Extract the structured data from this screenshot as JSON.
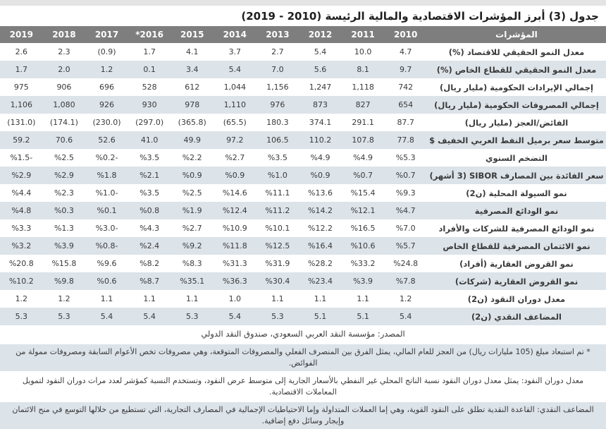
{
  "title": "جدول (3) أبرز المؤشرات الاقتصادية والمالية الرئيسة (2010 - 2019)",
  "colors": {
    "header_bg": "#7e7e7e",
    "header_text": "#ffffff",
    "row_alt_bg": "#dce3e9",
    "body_text": "#3a3a3a",
    "top_strip": "#e4e4e4"
  },
  "table": {
    "indicator_header": "المؤشرات",
    "years": [
      "2010",
      "2011",
      "2012",
      "2013",
      "2014",
      "2015",
      "*2016",
      "2017",
      "2018",
      "2019"
    ],
    "rows": [
      {
        "label": "معدل النمو الحقيقي للاقتصاد (%)",
        "values": [
          "4.7",
          "10.0",
          "5.4",
          "2.7",
          "3.7",
          "4.1",
          "1.7",
          "(0.9)",
          "2.3",
          "2.6"
        ]
      },
      {
        "label": "معدل النمو الحقيقي للقطاع الخاص (%)",
        "values": [
          "9.7",
          "8.1",
          "5.6",
          "7.0",
          "5.4",
          "3.4",
          "0.1",
          "1.2",
          "2.0",
          "1.7"
        ]
      },
      {
        "label": "إجمالي الإيرادات الحكومية (مليار ريال)",
        "values": [
          "742",
          "1,118",
          "1,247",
          "1,156",
          "1,044",
          "612",
          "528",
          "696",
          "906",
          "975"
        ]
      },
      {
        "label": "إجمالي المصروفات الحكومية (مليار ريال)",
        "values": [
          "654",
          "827",
          "873",
          "976",
          "1,110",
          "978",
          "930",
          "926",
          "1,080",
          "1,106"
        ]
      },
      {
        "label": "الفائض/العجز (مليار ريال)",
        "values": [
          "87.7",
          "291.1",
          "374.1",
          "180.3",
          "(65.5)",
          "(365.8)",
          "(297.0)",
          "(230.0)",
          "(174.1)",
          "(131.0)"
        ]
      },
      {
        "label": "متوسط سعر برميل النفط العربي الخفيف $",
        "values": [
          "77.8",
          "107.8",
          "110.2",
          "106.5",
          "97.2",
          "49.9",
          "41.0",
          "52.6",
          "70.6",
          "59.2"
        ]
      },
      {
        "label": "التضخم السنوي",
        "values": [
          "%5.3",
          "%4.9",
          "%4.9",
          "%3.5",
          "%2.7",
          "%2.2",
          "%3.5",
          "%0.2-",
          "%2.5",
          "%1.5-"
        ]
      },
      {
        "label": "سعر الفائدة بين المصارف SIBOR (3 أشهر)",
        "values": [
          "%0.7",
          "%0.7",
          "%0.9",
          "%1.0",
          "%0.9",
          "%0.9",
          "%2.1",
          "%1.8",
          "%2.9",
          "%2.9"
        ]
      },
      {
        "label": "نمو السيولة المحلية (ن2)",
        "values": [
          "%9.3",
          "%15.4",
          "%13.6",
          "%11.1",
          "%14.6",
          "%2.5",
          "%3.5",
          "%1.0-",
          "%2.3",
          "%4.4"
        ]
      },
      {
        "label": "نمو الودائع المصرفية",
        "values": [
          "%4.7",
          "%12.1",
          "%14.2",
          "%11.2",
          "%12.4",
          "%1.9",
          "%0.8",
          "%0.1",
          "%0.3",
          "%4.8"
        ]
      },
      {
        "label": "نمو الودائع المصرفية للشركات والأفراد",
        "values": [
          "%7.0",
          "%16.5",
          "%12.2",
          "%10.1",
          "%10.9",
          "%2.7",
          "%4.3",
          "%3.0-",
          "%1.3",
          "%3.3"
        ]
      },
      {
        "label": "نمو الائتمان المصرفية للقطاع الخاص",
        "values": [
          "%5.7",
          "%10.6",
          "%16.4",
          "%12.5",
          "%11.8",
          "%9.2",
          "%2.4",
          "%0.8-",
          "%3.9",
          "%3.2"
        ]
      },
      {
        "label": "نمو القروض العقارية (أفراد)",
        "values": [
          "%24.8",
          "%33.2",
          "%28.2",
          "%31.9",
          "%31.3",
          "%8.3",
          "%8.2",
          "%9.6",
          "%15.8",
          "%20.8"
        ]
      },
      {
        "label": "نمو القروض العقارية (شركات)",
        "values": [
          "%7.8",
          "%3.9",
          "%23.4",
          "%30.4",
          "%36.3",
          "%35.1",
          "%8.7",
          "%0.6",
          "%9.8",
          "%10.2"
        ]
      },
      {
        "label": "معدل دوران النقود (ن2)",
        "values": [
          "1.2",
          "1.1",
          "1.1",
          "1.1",
          "1.0",
          "1.1",
          "1.1",
          "1.1",
          "1.2",
          "1.2"
        ]
      },
      {
        "label": "المضاعف النقدي (ن2)",
        "values": [
          "5.4",
          "5.1",
          "5.1",
          "5.3",
          "5.4",
          "5.3",
          "5.4",
          "5.4",
          "5.3",
          "5.3"
        ]
      }
    ]
  },
  "source": "المصدر: مؤسسة النقد العربي السعودي، صندوق النقد الدولي",
  "footnotes": [
    "* تم استبعاد مبلغ (105 مليارات ريال) من العجز للعام المالي، يمثل الفرق بين المنصرف الفعلي والمصروفات المتوقعة، وهي مصروفات تخص الأعوام السابقة ومصروفات ممولة من الفوائض.",
    "معدل دوران النقود: يمثل معدل دوران النقود نسبة الناتج المحلي غير النفطي بالأسعار الجارية إلى متوسط عرض النقود، وتستخدم النسبة كمؤشر لعدد مرات دوران النقود لتمويل المعاملات الاقتصادية.",
    "المضاعف النقدي: القاعدة النقدية تطلق على النقود القوية، وهي إما العملات المتداولة وإما الاحتياطيات الإجمالية في المصارف التجارية، التي تستطيع من خلالها التوسع في منح الائتمان وإيجار وسائل دفع إضافية."
  ]
}
